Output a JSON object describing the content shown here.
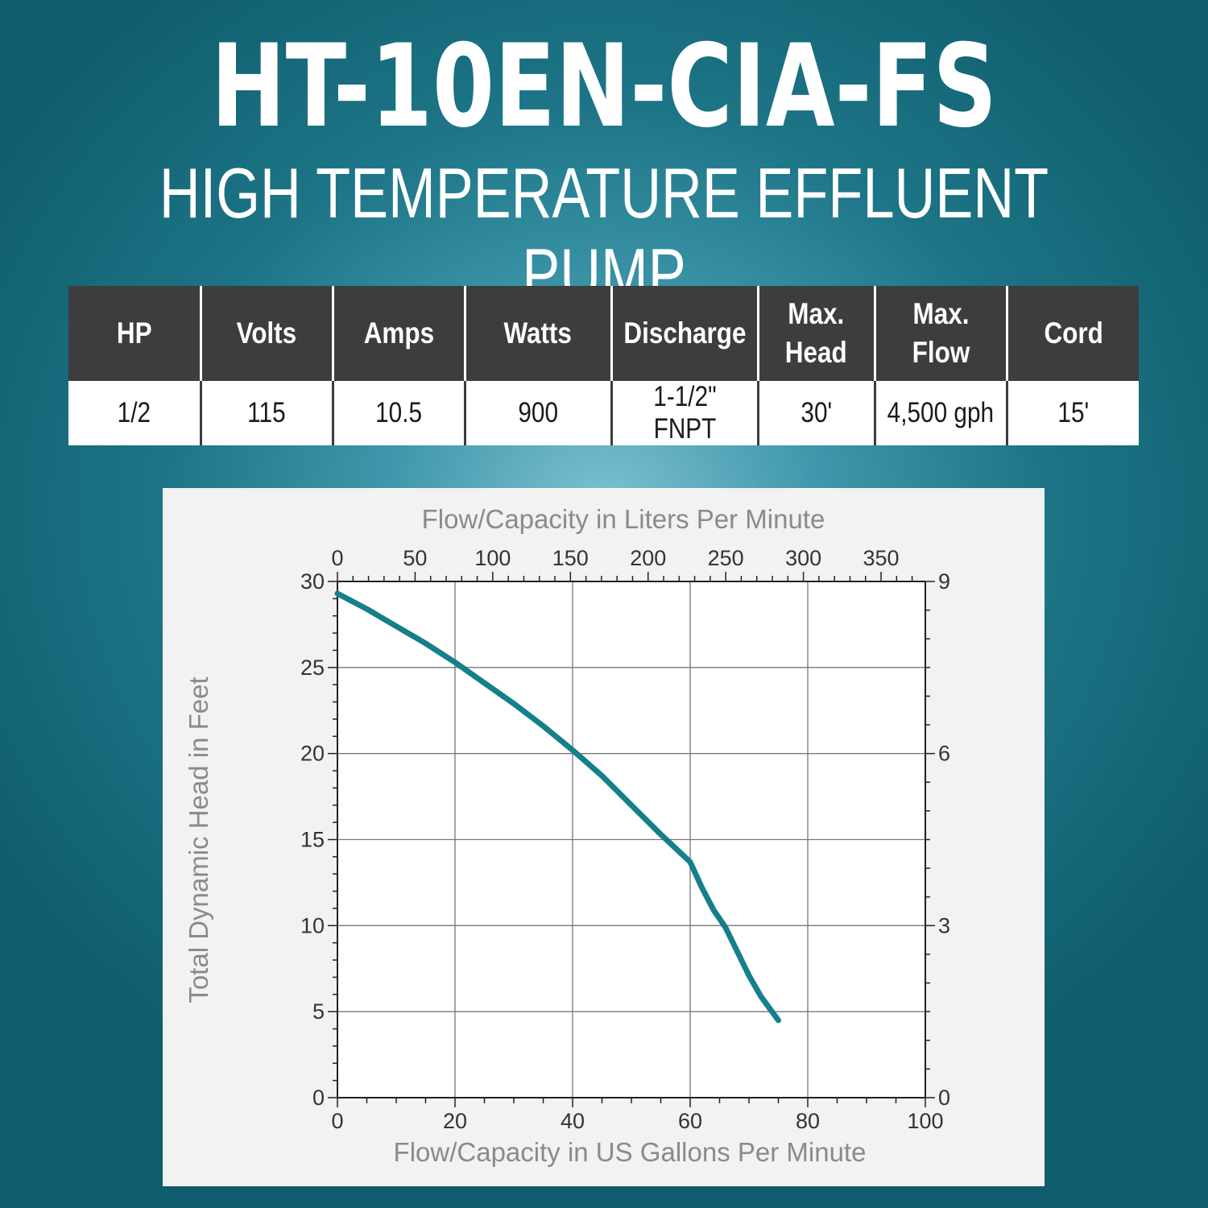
{
  "header": {
    "model": "HT-10EN-CIA-FS",
    "subtitle": "HIGH TEMPERATURE EFFLUENT PUMP"
  },
  "specs": {
    "headers": [
      "HP",
      "Volts",
      "Amps",
      "Watts",
      "Discharge",
      "Max.\nHead",
      "Max. Flow",
      "Cord"
    ],
    "values": [
      "1/2",
      "115",
      "10.5",
      "900",
      "1-1/2\" FNPT",
      "30'",
      "4,500 gph",
      "15'"
    ]
  },
  "colors": {
    "curve": "#157f8c",
    "header_bg": "#3d3d3d",
    "background": "#1d7587"
  },
  "chart_data": {
    "type": "line",
    "title": "",
    "xlabel": "Flow/Capacity in US Gallons Per Minute",
    "x2label": "Flow/Capacity in Liters Per Minute",
    "ylabel": "Total Dynamic Head in Feet",
    "xlim": [
      0,
      100
    ],
    "x2lim": [
      0,
      378.5
    ],
    "ylim": [
      0,
      30
    ],
    "y2lim": [
      0,
      9
    ],
    "x_ticks": [
      0,
      20,
      40,
      60,
      80,
      100
    ],
    "x2_ticks": [
      0,
      50,
      100,
      150,
      200,
      250,
      300,
      350
    ],
    "y_ticks": [
      0,
      5,
      10,
      15,
      20,
      25,
      30
    ],
    "y2_ticks": [
      0,
      3,
      6,
      9
    ],
    "grid": true,
    "legend": "none",
    "series": [
      {
        "x": [
          0,
          5,
          10,
          15,
          20,
          25,
          30,
          35,
          40,
          45,
          50,
          55,
          60,
          62,
          64,
          66,
          68,
          70,
          72,
          75
        ],
        "y": [
          29.3,
          28.4,
          27.4,
          26.4,
          25.3,
          24.1,
          22.9,
          21.6,
          20.2,
          18.7,
          17.0,
          15.3,
          13.7,
          12.2,
          10.9,
          9.9,
          8.5,
          7.1,
          5.9,
          4.5
        ]
      }
    ]
  }
}
